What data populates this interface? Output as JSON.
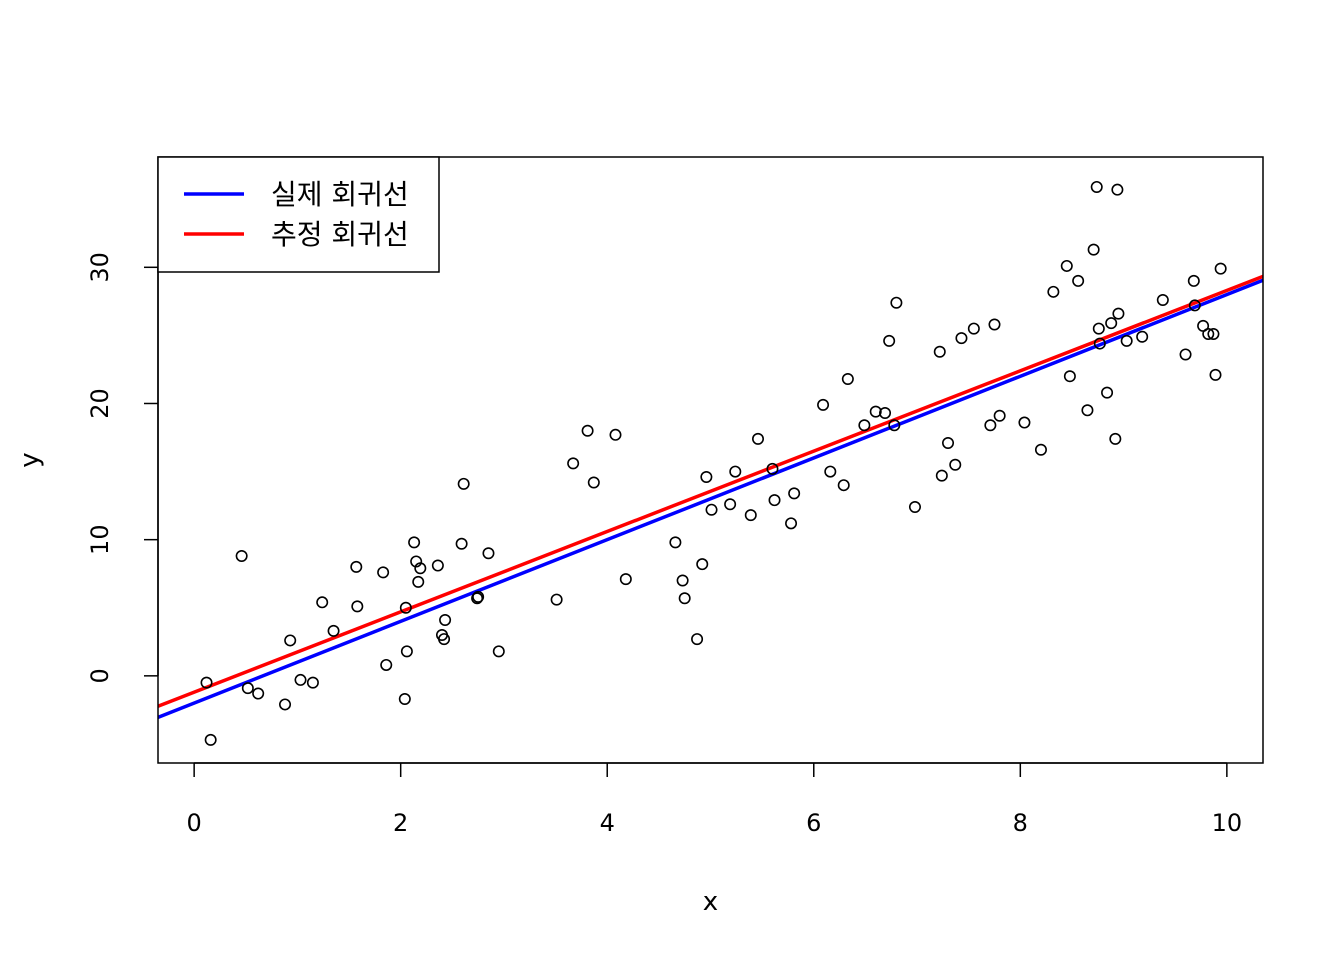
{
  "chart_data": {
    "type": "scatter",
    "title": "",
    "xlabel": "x",
    "ylabel": "y",
    "xlim": [
      -0.35,
      10.35
    ],
    "ylim": [
      -6.4,
      38.1
    ],
    "xticks": [
      0,
      2,
      4,
      6,
      8,
      10
    ],
    "yticks": [
      0,
      10,
      20,
      30
    ],
    "grid": false,
    "legend": {
      "position": "top-left",
      "entries": [
        {
          "label": "실제 회귀선",
          "color": "#0000FF"
        },
        {
          "label": "추정 회귀선",
          "color": "#FF0000"
        }
      ]
    },
    "lines": [
      {
        "name": "실제 회귀선",
        "color": "#0000FF",
        "intercept": -2.0,
        "slope": 3.0
      },
      {
        "name": "추정 회귀선",
        "color": "#FF0000",
        "intercept": -1.2,
        "slope": 2.95
      }
    ],
    "points": [
      [
        0.12,
        -0.5
      ],
      [
        0.16,
        -4.7
      ],
      [
        0.46,
        8.8
      ],
      [
        0.52,
        -0.9
      ],
      [
        0.62,
        -1.3
      ],
      [
        0.88,
        -2.1
      ],
      [
        0.93,
        2.6
      ],
      [
        1.03,
        -0.3
      ],
      [
        1.15,
        -0.5
      ],
      [
        1.24,
        5.4
      ],
      [
        1.35,
        3.3
      ],
      [
        1.57,
        8.0
      ],
      [
        1.58,
        5.1
      ],
      [
        1.83,
        7.6
      ],
      [
        1.86,
        0.8
      ],
      [
        2.04,
        -1.7
      ],
      [
        2.05,
        5.0
      ],
      [
        2.06,
        1.8
      ],
      [
        2.13,
        9.8
      ],
      [
        2.15,
        8.4
      ],
      [
        2.17,
        6.9
      ],
      [
        2.19,
        7.9
      ],
      [
        2.36,
        8.1
      ],
      [
        2.4,
        3.0
      ],
      [
        2.42,
        2.7
      ],
      [
        2.43,
        4.1
      ],
      [
        2.59,
        9.7
      ],
      [
        2.61,
        14.1
      ],
      [
        2.74,
        5.7
      ],
      [
        2.75,
        5.8
      ],
      [
        2.85,
        9.0
      ],
      [
        2.95,
        1.8
      ],
      [
        3.51,
        5.6
      ],
      [
        3.67,
        15.6
      ],
      [
        3.81,
        18.0
      ],
      [
        3.87,
        14.2
      ],
      [
        4.08,
        17.7
      ],
      [
        4.18,
        7.1
      ],
      [
        4.66,
        9.8
      ],
      [
        4.73,
        7.0
      ],
      [
        4.75,
        5.7
      ],
      [
        4.87,
        2.7
      ],
      [
        4.92,
        8.2
      ],
      [
        4.96,
        14.6
      ],
      [
        5.01,
        12.2
      ],
      [
        5.19,
        12.6
      ],
      [
        5.24,
        15.0
      ],
      [
        5.39,
        11.8
      ],
      [
        5.46,
        17.4
      ],
      [
        5.6,
        15.2
      ],
      [
        5.62,
        12.9
      ],
      [
        5.78,
        11.2
      ],
      [
        5.81,
        13.4
      ],
      [
        6.09,
        19.9
      ],
      [
        6.16,
        15.0
      ],
      [
        6.29,
        14.0
      ],
      [
        6.33,
        21.8
      ],
      [
        6.49,
        18.4
      ],
      [
        6.6,
        19.4
      ],
      [
        6.69,
        19.3
      ],
      [
        6.73,
        24.6
      ],
      [
        6.78,
        18.4
      ],
      [
        6.8,
        27.4
      ],
      [
        6.98,
        12.4
      ],
      [
        7.22,
        23.8
      ],
      [
        7.24,
        14.7
      ],
      [
        7.3,
        17.1
      ],
      [
        7.37,
        15.5
      ],
      [
        7.43,
        24.8
      ],
      [
        7.55,
        25.5
      ],
      [
        7.71,
        18.4
      ],
      [
        7.75,
        25.8
      ],
      [
        7.8,
        19.1
      ],
      [
        8.04,
        18.6
      ],
      [
        8.2,
        16.6
      ],
      [
        8.32,
        28.2
      ],
      [
        8.45,
        30.1
      ],
      [
        8.48,
        22.0
      ],
      [
        8.56,
        29.0
      ],
      [
        8.65,
        19.5
      ],
      [
        8.71,
        31.3
      ],
      [
        8.74,
        35.9
      ],
      [
        8.76,
        25.5
      ],
      [
        8.77,
        24.4
      ],
      [
        8.84,
        20.8
      ],
      [
        8.88,
        25.9
      ],
      [
        8.92,
        17.4
      ],
      [
        8.94,
        35.7
      ],
      [
        8.95,
        26.6
      ],
      [
        9.03,
        24.6
      ],
      [
        9.18,
        24.9
      ],
      [
        9.38,
        27.6
      ],
      [
        9.6,
        23.6
      ],
      [
        9.68,
        29.0
      ],
      [
        9.69,
        27.2
      ],
      [
        9.77,
        25.7
      ],
      [
        9.82,
        25.1
      ],
      [
        9.87,
        25.1
      ],
      [
        9.89,
        22.1
      ],
      [
        9.94,
        29.9
      ]
    ]
  }
}
